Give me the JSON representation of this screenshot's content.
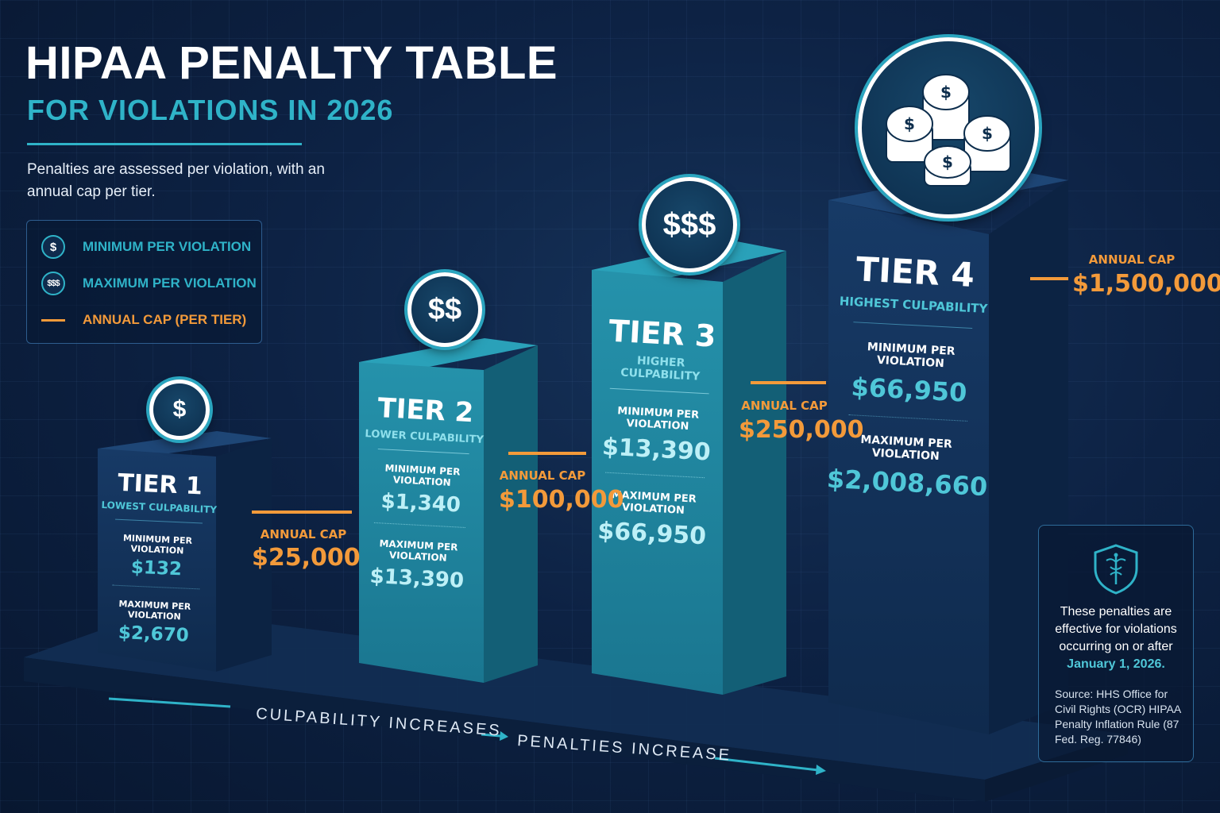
{
  "header": {
    "title": "HIPAA PENALTY TABLE",
    "subtitle": "FOR VIOLATIONS IN 2026",
    "intro": "Penalties are assessed per violation, with an annual cap per tier."
  },
  "legend": {
    "min_icon": "$",
    "min_label": "MINIMUM PER VIOLATION",
    "max_icon": "$$$",
    "max_label": "MAXIMUM PER VIOLATION",
    "cap_label": "ANNUAL CAP (PER TIER)"
  },
  "tiers": [
    {
      "name": "TIER 1",
      "culpability": "LOWEST CULPABILITY",
      "icon": "$",
      "min_label": "MINIMUM PER VIOLATION",
      "min_value": "$132",
      "max_label": "MAXIMUM PER VIOLATION",
      "max_value": "$2,670",
      "cap_label": "ANNUAL CAP",
      "cap_value": "$25,000"
    },
    {
      "name": "TIER 2",
      "culpability": "LOWER CULPABILITY",
      "icon": "$$",
      "min_label": "MINIMUM PER VIOLATION",
      "min_value": "$1,340",
      "max_label": "MAXIMUM PER VIOLATION",
      "max_value": "$13,390",
      "cap_label": "ANNUAL CAP",
      "cap_value": "$100,000"
    },
    {
      "name": "TIER 3",
      "culpability": "HIGHER CULPABILITY",
      "icon": "$$$",
      "min_label": "MINIMUM PER VIOLATION",
      "min_value": "$13,390",
      "max_label": "MAXIMUM PER VIOLATION",
      "max_value": "$66,950",
      "cap_label": "ANNUAL CAP",
      "cap_value": "$250,000"
    },
    {
      "name": "TIER 4",
      "culpability": "HIGHEST CULPABILITY",
      "icon": "coin-stack-icon",
      "min_label": "MINIMUM PER VIOLATION",
      "min_value": "$66,950",
      "max_label": "MAXIMUM PER VIOLATION",
      "max_value": "$2,008,660",
      "cap_label": "ANNUAL CAP",
      "cap_value": "$1,500,000"
    }
  ],
  "axis": {
    "left": "CULPABILITY INCREASES",
    "right": "PENALTIES INCREASE"
  },
  "note": {
    "icon": "shield-caduceus-icon",
    "text": "These penalties are effective for violations occurring on or after",
    "date": "January 1, 2026.",
    "source": "Source: HHS Office for Civil Rights (OCR) HIPAA Penalty Inflation Rule (87 Fed. Reg. 77846)"
  },
  "colors": {
    "background": "#0d2244",
    "accent_teal": "#2fb3c8",
    "cap_orange": "#f39a3a",
    "tier_dark": "#112d55",
    "tier_teal": "#1e8aa3"
  }
}
